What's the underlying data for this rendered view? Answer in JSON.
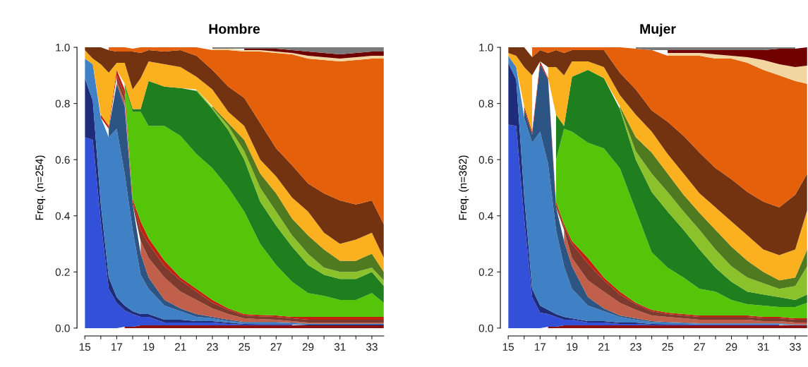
{
  "chart_data": [
    {
      "type": "area",
      "stacked": true,
      "title": "Hombre",
      "ylabel": "Freq. (n=254)",
      "x": [
        15,
        15.5,
        16,
        16.5,
        17,
        17.5,
        18,
        18.5,
        19,
        20,
        21,
        22,
        23,
        24,
        25,
        26,
        27,
        28,
        29,
        30,
        31,
        32,
        33,
        33.75
      ],
      "xlim": [
        15,
        33.75
      ],
      "ylim": [
        0,
        1
      ],
      "xticks": [
        15,
        {
          "value": 16,
          "label": null
        },
        17,
        {
          "value": 18,
          "label": null
        },
        19,
        {
          "value": 20,
          "label": null
        },
        21,
        {
          "value": 22,
          "label": null
        },
        23,
        {
          "value": 24,
          "label": null
        },
        25,
        {
          "value": 26,
          "label": null
        },
        27,
        {
          "value": 28,
          "label": null
        },
        29,
        {
          "value": 30,
          "label": null
        },
        31,
        {
          "value": 32,
          "label": null
        },
        33
      ],
      "yticks": [
        {
          "value": 0,
          "label": "0.0"
        },
        {
          "value": 0.2,
          "label": "0.2"
        },
        {
          "value": 0.4,
          "label": "0.4"
        },
        {
          "value": 0.6,
          "label": "0.6"
        },
        {
          "value": 0.8,
          "label": "0.8"
        },
        {
          "value": 1,
          "label": "1.0"
        }
      ],
      "series": [
        {
          "color": "#8b1010",
          "values": [
            null,
            null,
            null,
            null,
            null,
            0.005,
            0.005,
            0.01,
            0.01,
            0.01,
            0.01,
            0.01,
            0.01,
            0.01,
            0.01,
            0.01,
            0.01,
            0.01,
            0.01,
            0.01,
            0.01,
            0.01,
            0.01,
            0.01
          ]
        },
        {
          "color": "#3350d8",
          "values": [
            0.68,
            0.67,
            0.38,
            0.14,
            0.09,
            0.058,
            0.045,
            0.03,
            0.03,
            0.01,
            0.01,
            0.01,
            0.01,
            0.005,
            0.002,
            0.002,
            0.002,
            0.002,
            null,
            null,
            null,
            null,
            null,
            null
          ]
        },
        {
          "color": "#1f2c7a",
          "values": [
            0.21,
            0.14,
            0.06,
            0.04,
            0.02,
            0.017,
            0.01,
            0.01,
            0.01,
            0.01,
            0.01,
            0.005,
            0.005,
            0.005,
            0.003,
            0.002,
            0.002,
            0.002,
            0.002,
            0.002,
            0.002,
            0.002,
            0.002,
            0.002
          ]
        },
        {
          "color": "#4080c4",
          "values": [
            0.07,
            0.13,
            0.31,
            0.5,
            0.6,
            0.47,
            0.29,
            0.14,
            0.09,
            0.05,
            0.03,
            0.015,
            0.01,
            0.005,
            0.005,
            0.006,
            0.006,
            0.004,
            0.003,
            0.003,
            0.003,
            0.003,
            0.003,
            0.003
          ]
        },
        {
          "color": "#2c5584",
          "values": [
            null,
            null,
            null,
            0.03,
            0.16,
            0.24,
            0.09,
            0.075,
            0.04,
            0.02,
            0.01,
            0.01,
            0.005,
            0.005,
            0.002,
            0.002,
            0.002,
            0.002,
            0.001,
            0.001,
            0.001,
            0.001,
            0.001,
            0.001
          ]
        },
        {
          "color": "#c0604a",
          "values": [
            null,
            null,
            null,
            null,
            0.01,
            0.02,
            null,
            0.045,
            0.07,
            0.08,
            0.06,
            0.05,
            0.03,
            0.02,
            0.013,
            0.01,
            0.008,
            0.005,
            0.004,
            0.004,
            0.004,
            0.004,
            0.004,
            0.004
          ]
        },
        {
          "color": "#7e3a2c",
          "values": [
            null,
            null,
            null,
            null,
            0.02,
            0.02,
            0.01,
            0.04,
            0.05,
            0.04,
            0.04,
            0.03,
            0.02,
            0.015,
            0.01,
            0.01,
            0.01,
            0.01,
            0.01,
            0.01,
            0.01,
            0.01,
            0.01,
            0.01
          ]
        },
        {
          "color": "#c42010",
          "values": [
            null,
            null,
            0.01,
            0.01,
            0.02,
            0.02,
            0.01,
            0.03,
            0.02,
            0.02,
            0.01,
            0.01,
            0.01,
            0.005,
            0.005,
            0.005,
            0.005,
            0.005,
            0.01,
            0.01,
            0.01,
            0.01,
            0.01,
            0.01
          ]
        },
        {
          "color": "#55c50a",
          "values": [
            null,
            null,
            null,
            null,
            null,
            0.01,
            0.31,
            0.39,
            0.4,
            0.48,
            0.505,
            0.48,
            0.47,
            0.43,
            0.365,
            0.253,
            0.18,
            0.125,
            0.085,
            0.075,
            0.06,
            0.06,
            0.085,
            0.05
          ]
        },
        {
          "color": "#1f7f1f",
          "values": [
            null,
            null,
            null,
            null,
            null,
            0.01,
            0.01,
            0.01,
            0.16,
            0.14,
            0.17,
            0.225,
            0.21,
            0.205,
            0.185,
            0.15,
            0.14,
            0.125,
            0.1,
            0.075,
            0.075,
            0.075,
            0.075,
            0.06
          ]
        },
        {
          "color": "#8bc22c",
          "values": [
            null,
            null,
            null,
            null,
            null,
            null,
            null,
            null,
            null,
            null,
            null,
            0.005,
            0.005,
            0.015,
            0.03,
            0.05,
            0.05,
            0.04,
            0.04,
            0.025,
            0.025,
            0.025,
            0.015,
            0.02
          ]
        },
        {
          "color": "#4f7a20",
          "values": [
            null,
            null,
            null,
            null,
            null,
            null,
            null,
            null,
            null,
            null,
            null,
            null,
            0.005,
            0.01,
            0.04,
            0.05,
            0.065,
            0.06,
            0.065,
            0.065,
            0.04,
            0.04,
            0.05,
            0.03
          ]
        },
        {
          "color": "#fbb11f",
          "values": [
            0.03,
            0.02,
            0.18,
            0.19,
            0.025,
            0.075,
            0.07,
            0.11,
            0.07,
            0.08,
            0.075,
            0.045,
            0.06,
            0.04,
            0.05,
            0.05,
            0.06,
            0.075,
            0.085,
            0.06,
            0.06,
            0.075,
            0.075,
            0.05
          ]
        },
        {
          "color": "#733311",
          "values": [
            0.01,
            0.04,
            0.06,
            0.08,
            0.04,
            0.04,
            0.135,
            0.09,
            0.04,
            0.045,
            0.06,
            0.075,
            0.07,
            0.09,
            0.1,
            0.13,
            0.1,
            0.115,
            0.1,
            0.14,
            0.155,
            0.125,
            0.115,
            0.12
          ]
        },
        {
          "color": "#e5600a",
          "values": [
            null,
            null,
            null,
            0.01,
            0.015,
            0.015,
            0.01,
            0.02,
            0.01,
            0.015,
            0.01,
            0.03,
            0.07,
            0.13,
            0.165,
            0.255,
            0.34,
            0.395,
            0.445,
            0.475,
            0.495,
            0.515,
            0.505,
            0.59
          ]
        },
        {
          "color": "#f2d6a2",
          "values": [
            null,
            null,
            null,
            null,
            null,
            null,
            null,
            null,
            null,
            null,
            null,
            null,
            0.005,
            0.005,
            0.005,
            0.005,
            0.005,
            0.005,
            0.01,
            0.01,
            0.01,
            0.01,
            0.01,
            0.01
          ]
        },
        {
          "color": "#700000",
          "values": [
            null,
            null,
            null,
            null,
            null,
            null,
            null,
            null,
            null,
            null,
            null,
            null,
            null,
            null,
            0.005,
            0.005,
            0.01,
            0.01,
            0.015,
            0.015,
            0.015,
            0.015,
            0.015,
            0.015
          ]
        },
        {
          "color": "#7a7a7a",
          "values": [
            null,
            null,
            null,
            null,
            null,
            null,
            null,
            null,
            null,
            null,
            null,
            null,
            0.005,
            0.005,
            0.005,
            0.005,
            0.005,
            0.01,
            0.015,
            0.02,
            0.025,
            0.02,
            0.015,
            0.015
          ]
        }
      ]
    },
    {
      "type": "area",
      "stacked": true,
      "title": "Mujer",
      "ylabel": "Freq. (n=362)",
      "x": [
        15,
        15.5,
        16,
        16.5,
        17,
        17.5,
        18,
        18.5,
        19,
        20,
        21,
        22,
        23,
        24,
        25,
        26,
        27,
        28,
        29,
        30,
        31,
        32,
        33,
        33.75
      ],
      "xlim": [
        15,
        33.75
      ],
      "ylim": [
        0,
        1
      ],
      "xticks": [
        15,
        {
          "value": 16,
          "label": null
        },
        17,
        {
          "value": 18,
          "label": null
        },
        19,
        {
          "value": 20,
          "label": null
        },
        21,
        {
          "value": 22,
          "label": null
        },
        23,
        {
          "value": 24,
          "label": null
        },
        25,
        {
          "value": 26,
          "label": null
        },
        27,
        {
          "value": 28,
          "label": null
        },
        29,
        {
          "value": 30,
          "label": null
        },
        31,
        {
          "value": 32,
          "label": null
        },
        33
      ],
      "yticks": [
        {
          "value": 0,
          "label": "0.0"
        },
        {
          "value": 0.2,
          "label": "0.2"
        },
        {
          "value": 0.4,
          "label": "0.4"
        },
        {
          "value": 0.6,
          "label": "0.6"
        },
        {
          "value": 0.8,
          "label": "0.8"
        },
        {
          "value": 1,
          "label": "1.0"
        }
      ],
      "series": [
        {
          "color": "#8b1010",
          "values": [
            null,
            null,
            null,
            null,
            null,
            0.005,
            0.005,
            0.01,
            0.01,
            0.01,
            0.01,
            0.01,
            0.01,
            0.01,
            0.01,
            0.01,
            0.01,
            0.01,
            0.01,
            0.01,
            0.01,
            0.01,
            0.01,
            0.01
          ]
        },
        {
          "color": "#3350d8",
          "values": [
            0.725,
            0.72,
            0.39,
            0.11,
            0.055,
            0.045,
            0.035,
            0.02,
            0.02,
            0.01,
            0.01,
            0.005,
            0.005,
            0.002,
            0.002,
            0.002,
            0.002,
            0.002,
            0.002,
            0.002,
            0.002,
            0.002,
            null,
            null
          ]
        },
        {
          "color": "#1f2c7a",
          "values": [
            0.22,
            0.165,
            0.08,
            0.03,
            0.025,
            0.015,
            0.01,
            0.01,
            0.005,
            0.005,
            0.005,
            0.005,
            0.005,
            0.003,
            0.002,
            0.002,
            0.001,
            0.001,
            0.001,
            0.001,
            0.001,
            0.001,
            0.001,
            0.001
          ]
        },
        {
          "color": "#4080c4",
          "values": [
            0.025,
            0.045,
            0.28,
            0.52,
            0.62,
            0.52,
            0.3,
            0.18,
            0.105,
            0.055,
            0.035,
            0.02,
            0.01,
            0.007,
            0.006,
            0.004,
            0.003,
            0.003,
            0.003,
            0.003,
            0.003,
            0.003,
            0.001,
            0.001
          ]
        },
        {
          "color": "#2c5584",
          "values": [
            null,
            null,
            0.03,
            0.03,
            0.24,
            0.3,
            0.08,
            0.09,
            0.08,
            0.03,
            0.01,
            0.005,
            0.005,
            0.003,
            0.002,
            0.002,
            0.001,
            0.001,
            0.001,
            0.001,
            0.001,
            0.001,
            0.001,
            0.001
          ]
        },
        {
          "color": "#c0604a",
          "values": [
            null,
            null,
            null,
            null,
            null,
            null,
            null,
            0.04,
            0.03,
            0.06,
            0.06,
            0.045,
            0.03,
            0.02,
            0.018,
            0.015,
            0.013,
            0.013,
            0.013,
            0.013,
            0.008,
            0.008,
            0.007,
            0.007
          ]
        },
        {
          "color": "#7e3a2c",
          "values": [
            null,
            null,
            null,
            null,
            null,
            null,
            0.01,
            0.01,
            0.05,
            0.06,
            0.04,
            0.03,
            0.02,
            0.015,
            0.01,
            0.01,
            0.01,
            0.01,
            0.01,
            0.01,
            0.01,
            0.01,
            0.01,
            0.01
          ]
        },
        {
          "color": "#c42010",
          "values": [
            null,
            null,
            0.01,
            0.01,
            0.01,
            0.005,
            0.01,
            0.01,
            0.01,
            0.02,
            0.01,
            0.01,
            0.005,
            0.005,
            0.005,
            0.005,
            0.005,
            0.005,
            0.005,
            0.005,
            0.005,
            0.005,
            0.005,
            0.005
          ]
        },
        {
          "color": "#55c50a",
          "values": [
            null,
            null,
            null,
            null,
            null,
            null,
            0.15,
            0.34,
            0.39,
            0.41,
            0.46,
            0.44,
            0.33,
            0.205,
            0.16,
            0.13,
            0.095,
            0.085,
            0.055,
            0.04,
            0.04,
            0.035,
            0.04,
            0.055
          ]
        },
        {
          "color": "#1f7f1f",
          "values": [
            null,
            null,
            null,
            null,
            null,
            null,
            0.16,
            0.01,
            0.195,
            0.26,
            0.25,
            0.21,
            0.18,
            0.215,
            0.2,
            0.17,
            0.14,
            0.085,
            0.065,
            0.045,
            0.04,
            0.035,
            0.025,
            0.03
          ]
        },
        {
          "color": "#8bc22c",
          "values": [
            null,
            null,
            null,
            null,
            null,
            null,
            null,
            null,
            null,
            null,
            null,
            0.005,
            0.03,
            0.065,
            0.07,
            0.065,
            0.07,
            0.065,
            0.055,
            0.05,
            0.04,
            0.03,
            0.05,
            0.1
          ]
        },
        {
          "color": "#4f7a20",
          "values": [
            null,
            null,
            null,
            null,
            null,
            null,
            null,
            null,
            null,
            null,
            null,
            0.005,
            0.05,
            0.075,
            0.065,
            0.06,
            0.06,
            0.07,
            0.07,
            0.06,
            0.04,
            0.03,
            0.03,
            0.06
          ]
        },
        {
          "color": "#fbb11f",
          "values": [
            0.01,
            0.04,
            0.14,
            0.2,
            null,
            0.04,
            0.17,
            0.18,
            0.055,
            0.03,
            0.04,
            0.04,
            0.08,
            0.075,
            0.07,
            0.075,
            0.07,
            0.08,
            0.09,
            0.09,
            0.08,
            0.09,
            0.1,
            0.14
          ]
        },
        {
          "color": "#733311",
          "values": [
            0.02,
            0.03,
            0.07,
            0.065,
            0.04,
            0.05,
            0.06,
            0.08,
            0.04,
            0.04,
            0.06,
            0.08,
            0.09,
            0.075,
            0.115,
            0.135,
            0.145,
            0.14,
            0.15,
            0.155,
            0.17,
            0.17,
            0.195,
            0.13
          ]
        },
        {
          "color": "#e5600a",
          "values": [
            null,
            null,
            null,
            0.035,
            0.01,
            0.02,
            0.01,
            0.02,
            0.01,
            0.01,
            0.01,
            0.09,
            0.145,
            0.215,
            0.235,
            0.285,
            0.345,
            0.39,
            0.43,
            0.46,
            0.47,
            0.47,
            0.405,
            0.32
          ]
        },
        {
          "color": "#f2d6a2",
          "values": [
            null,
            null,
            null,
            null,
            null,
            null,
            null,
            null,
            null,
            null,
            null,
            null,
            null,
            null,
            0.01,
            0.01,
            0.01,
            0.015,
            0.01,
            0.02,
            0.035,
            0.04,
            0.05,
            0.065
          ]
        },
        {
          "color": "#700000",
          "values": [
            null,
            null,
            null,
            null,
            null,
            null,
            null,
            null,
            null,
            null,
            null,
            null,
            null,
            null,
            0.01,
            0.01,
            0.01,
            0.015,
            0.02,
            0.025,
            0.035,
            0.055,
            0.065,
            0.065
          ]
        },
        {
          "color": "#7a7a7a",
          "values": [
            null,
            null,
            null,
            null,
            null,
            null,
            null,
            null,
            null,
            null,
            null,
            null,
            0.005,
            0.01,
            0.01,
            0.01,
            0.01,
            0.01,
            0.01,
            0.01,
            0.01,
            0.005,
            0.005,
            null
          ]
        }
      ]
    }
  ]
}
